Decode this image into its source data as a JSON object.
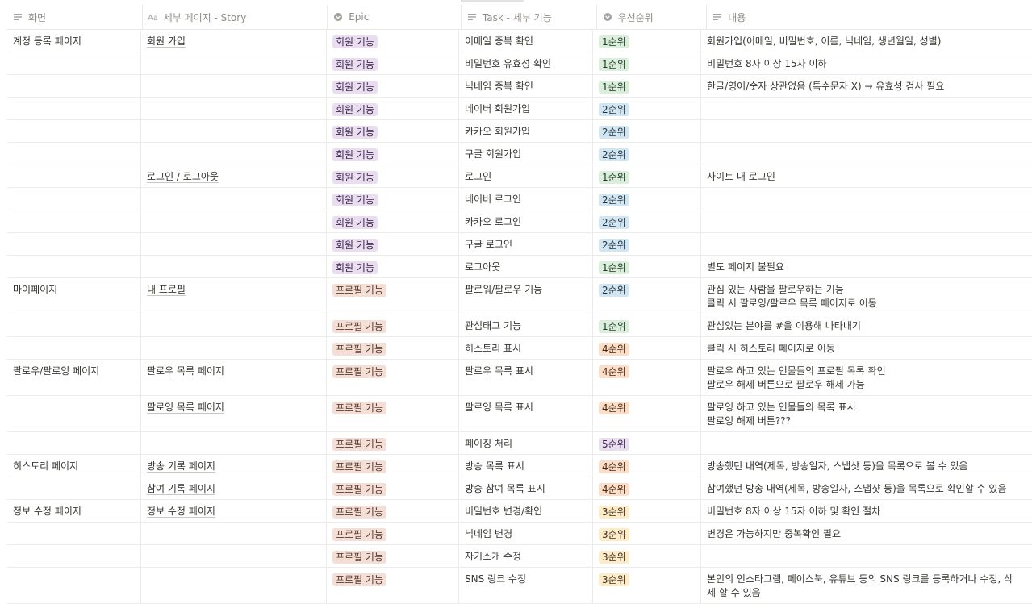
{
  "columns": [
    {
      "label": "화면",
      "icon": "text-lines-icon"
    },
    {
      "label": "세부 페이지 - Story",
      "icon": "title-aa-icon"
    },
    {
      "label": "Epic",
      "icon": "select-circle-icon"
    },
    {
      "label": "Task - 세부 기능",
      "icon": "text-lines-icon"
    },
    {
      "label": "우선순위",
      "icon": "select-circle-icon"
    },
    {
      "label": "내용",
      "icon": "text-lines-icon"
    }
  ],
  "rows": [
    {
      "screen": "계정 등록 페이지",
      "story": "회원 가입",
      "epic": "회원 기능",
      "epic_kind": "member",
      "task": "이메일 중복 확인",
      "priority": "1순위",
      "pkind": "p1",
      "content": "회원가입(이메일, 비밀번호, 이름, 닉네임, 생년월일, 성별)",
      "lines": 1
    },
    {
      "screen": "",
      "story": "",
      "epic": "회원 기능",
      "epic_kind": "member",
      "task": "비밀번호 유효성 확인",
      "priority": "1순위",
      "pkind": "p1",
      "content": "비밀번호 8자 이상 15자 이하",
      "lines": 1
    },
    {
      "screen": "",
      "story": "",
      "epic": "회원 기능",
      "epic_kind": "member",
      "task": "닉네임 중복 확인",
      "priority": "1순위",
      "pkind": "p1",
      "content": "한글/영어/숫자 상관없음 (특수문자 X) → 유효성 검사 필요",
      "lines": 1
    },
    {
      "screen": "",
      "story": "",
      "epic": "회원 기능",
      "epic_kind": "member",
      "task": "네이버 회원가입",
      "priority": "2순위",
      "pkind": "p2",
      "content": "",
      "lines": 1
    },
    {
      "screen": "",
      "story": "",
      "epic": "회원 기능",
      "epic_kind": "member",
      "task": "카카오 회원가입",
      "priority": "2순위",
      "pkind": "p2",
      "content": "",
      "lines": 1
    },
    {
      "screen": "",
      "story": "",
      "epic": "회원 기능",
      "epic_kind": "member",
      "task": "구글 회원가입",
      "priority": "2순위",
      "pkind": "p2",
      "content": "",
      "lines": 1
    },
    {
      "screen": "",
      "story": "로그인 / 로그아웃",
      "epic": "회원 기능",
      "epic_kind": "member",
      "task": "로그인",
      "priority": "1순위",
      "pkind": "p1",
      "content": "사이트 내 로그인",
      "lines": 1
    },
    {
      "screen": "",
      "story": "",
      "epic": "회원 기능",
      "epic_kind": "member",
      "task": "네이버 로그인",
      "priority": "2순위",
      "pkind": "p2",
      "content": "",
      "lines": 1
    },
    {
      "screen": "",
      "story": "",
      "epic": "회원 기능",
      "epic_kind": "member",
      "task": "카카오 로그인",
      "priority": "2순위",
      "pkind": "p2",
      "content": "",
      "lines": 1
    },
    {
      "screen": "",
      "story": "",
      "epic": "회원 기능",
      "epic_kind": "member",
      "task": "구글 로그인",
      "priority": "2순위",
      "pkind": "p2",
      "content": "",
      "lines": 1
    },
    {
      "screen": "",
      "story": "",
      "epic": "회원 기능",
      "epic_kind": "member",
      "task": "로그아웃",
      "priority": "1순위",
      "pkind": "p1",
      "content": "별도 페이지 불필요",
      "lines": 1
    },
    {
      "screen": "마이페이지",
      "story": "내 프로필",
      "epic": "프로필 기능",
      "epic_kind": "profile",
      "task": "팔로워/팔로우 기능",
      "priority": "2순위",
      "pkind": "p2",
      "content": "관심 있는 사람을 팔로우하는 기능\n클릭 시 팔로잉/팔로우 목록 페이지로 이동",
      "lines": 2
    },
    {
      "screen": "",
      "story": "",
      "epic": "프로필 기능",
      "epic_kind": "profile",
      "task": "관심태그 기능",
      "priority": "1순위",
      "pkind": "p1",
      "content": "관심있는 분야를 #을 이용해 나타내기",
      "lines": 1
    },
    {
      "screen": "",
      "story": "",
      "epic": "프로필 기능",
      "epic_kind": "profile",
      "task": "히스토리 표시",
      "priority": "4순위",
      "pkind": "p4",
      "content": "클릭 시 히스토리 페이지로 이동",
      "lines": 1
    },
    {
      "screen": "팔로우/팔로잉 페이지",
      "story": "팔로우 목록 페이지",
      "epic": "프로필 기능",
      "epic_kind": "profile",
      "task": "팔로우 목록 표시",
      "priority": "4순위",
      "pkind": "p4",
      "content": "팔로우 하고 있는 인물들의 프로필 목록 확인\n팔로우 해제 버튼으로 팔로우 해제 가능",
      "lines": 2
    },
    {
      "screen": "",
      "story": "팔로잉 목록 페이지",
      "epic": "프로필 기능",
      "epic_kind": "profile",
      "task": "팔로잉 목록 표시",
      "priority": "4순위",
      "pkind": "p4",
      "content": "팔로잉 하고 있는 인물들의 목록 표시\n팔로잉 해제 버튼???",
      "lines": 2
    },
    {
      "screen": "",
      "story": "",
      "epic": "프로필 기능",
      "epic_kind": "profile",
      "task": "페이징 처리",
      "priority": "5순위",
      "pkind": "p5",
      "content": "",
      "lines": 1
    },
    {
      "screen": "히스토리 페이지",
      "story": "방송 기록 페이지",
      "epic": "프로필 기능",
      "epic_kind": "profile",
      "task": "방송 목록 표시",
      "priority": "4순위",
      "pkind": "p4",
      "content": "방송했던 내역(제목, 방송일자, 스냅샷 등)을 목록으로 볼 수 있음",
      "lines": 1
    },
    {
      "screen": "",
      "story": "참여 기록 페이지",
      "epic": "프로필 기능",
      "epic_kind": "profile",
      "task": "방송 참여 목록 표시",
      "priority": "4순위",
      "pkind": "p4",
      "content": "참여했던 방송 내역(제목, 방송일자, 스냅샷 등)을 목록으로 확인할 수 있음",
      "lines": 1
    },
    {
      "screen": "정보 수정 페이지",
      "story": "정보 수정 페이지",
      "epic": "프로필 기능",
      "epic_kind": "profile",
      "task": "비밀번호 변경/확인",
      "priority": "3순위",
      "pkind": "p3",
      "content": "비밀번호 8자 이상 15자 이하 및 확인 절차",
      "lines": 1
    },
    {
      "screen": "",
      "story": "",
      "epic": "프로필 기능",
      "epic_kind": "profile",
      "task": "닉네임 변경",
      "priority": "3순위",
      "pkind": "p3",
      "content": "변경은 가능하지만 중복확인 필요",
      "lines": 1
    },
    {
      "screen": "",
      "story": "",
      "epic": "프로필 기능",
      "epic_kind": "profile",
      "task": "자기소개 수정",
      "priority": "3순위",
      "pkind": "p3",
      "content": "",
      "lines": 1
    },
    {
      "screen": "",
      "story": "",
      "epic": "프로필 기능",
      "epic_kind": "profile",
      "task": "SNS 링크 수정",
      "priority": "3순위",
      "pkind": "p3",
      "content": "본인의 인스타그램, 페이스북, 유튜브 등의 SNS 링크를 등록하거나 수정, 삭\n제 할 수 있음",
      "lines": 2
    }
  ]
}
